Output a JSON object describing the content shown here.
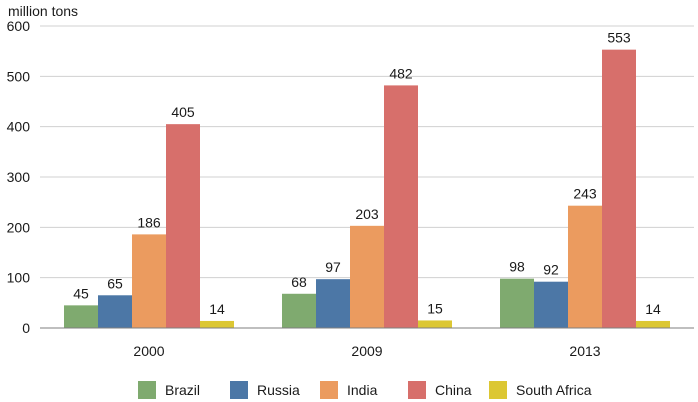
{
  "chart_data": {
    "type": "bar",
    "ylabel": "million tons",
    "ylim": [
      0,
      600
    ],
    "yticks": [
      0,
      100,
      200,
      300,
      400,
      500,
      600
    ],
    "categories": [
      "2000",
      "2009",
      "2013"
    ],
    "series": [
      {
        "name": "Brazil",
        "color": "#7faa6f",
        "values": [
          45,
          68,
          98
        ]
      },
      {
        "name": "Russia",
        "color": "#4c77a6",
        "values": [
          65,
          97,
          92
        ]
      },
      {
        "name": "India",
        "color": "#eb9b5f",
        "values": [
          186,
          203,
          243
        ]
      },
      {
        "name": "China",
        "color": "#d76f6b",
        "values": [
          405,
          482,
          553
        ]
      },
      {
        "name": "South Africa",
        "color": "#dcc733",
        "values": [
          14,
          15,
          14
        ]
      }
    ],
    "grid": true,
    "legend_position": "bottom"
  }
}
